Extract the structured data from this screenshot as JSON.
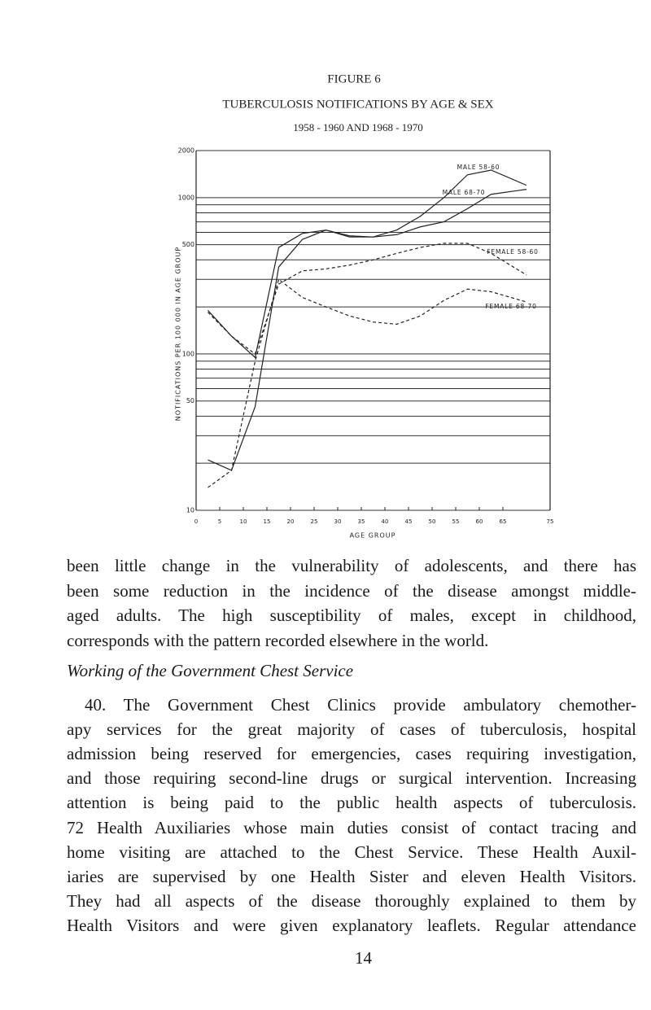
{
  "document": {
    "figure_label": "FIGURE 6",
    "paragraph_1": [
      "been little change in the vulnerability of adolescents, and there has",
      "been some reduction in the incidence of the disease amongst middle-",
      "aged adults. The high susceptibility of males, except in childhood,",
      "corresponds with the pattern recorded elsewhere in the world."
    ],
    "heading": "Working of the Government Chest Service",
    "paragraph_2": [
      "40. The Government Chest Clinics provide ambulatory chemother-",
      "apy services for the great majority of cases of tuberculosis, hospital",
      "admission being reserved for emergencies, cases requiring investigation,",
      "and those requiring second-line drugs or surgical intervention. Increasing",
      "attention is being paid to the public health aspects of tuberculosis.",
      "72 Health Auxiliaries whose main duties consist of contact tracing and",
      "home visiting are attached to the Chest Service. These Health Auxil-",
      "iaries are supervised by one Health Sister and eleven Health Visitors.",
      "They had all aspects of the disease thoroughly explained to them by",
      "Health Visitors and were given explanatory leaflets. Regular attendance"
    ],
    "page_number": "14"
  },
  "chart_data": {
    "type": "line",
    "title": "TUBERCULOSIS NOTIFICATIONS BY AGE & SEX",
    "subtitle": "1958 - 1960 AND 1968 - 1970",
    "x_label": "AGE GROUP",
    "y_label": "NOTIFICATIONS PER 100 000 IN AGE GROUP",
    "x": [
      2.5,
      7.5,
      12.5,
      17.5,
      22.5,
      27.5,
      32.5,
      37.5,
      42.5,
      47.5,
      52.5,
      57.5,
      62.5,
      70
    ],
    "series": [
      {
        "name": "MALE 58-60",
        "color": "#222222",
        "dashed": false,
        "values": [
          190,
          130,
          95,
          480,
          590,
          620,
          570,
          560,
          620,
          760,
          1000,
          1400,
          1500,
          1200
        ]
      },
      {
        "name": "MALE 68-70",
        "color": "#222222",
        "dashed": false,
        "values": [
          21,
          18,
          46,
          360,
          540,
          620,
          560,
          560,
          580,
          650,
          700,
          850,
          1050,
          1130
        ]
      },
      {
        "name": "FEMALE 58-60",
        "color": "#222222",
        "dashed": true,
        "values": [
          185,
          130,
          100,
          280,
          340,
          350,
          370,
          400,
          440,
          480,
          510,
          510,
          440,
          320
        ]
      },
      {
        "name": "FEMALE 68-70",
        "color": "#222222",
        "dashed": true,
        "values": [
          14,
          18,
          90,
          300,
          230,
          200,
          175,
          160,
          155,
          175,
          220,
          260,
          250,
          215
        ]
      }
    ],
    "xlim": [
      0,
      75
    ],
    "xticks": [
      0,
      5,
      10,
      15,
      20,
      25,
      30,
      35,
      40,
      45,
      50,
      55,
      60,
      65,
      75
    ],
    "ylim": [
      10,
      2000
    ],
    "yticks": [
      10,
      50,
      100,
      500,
      1000,
      2000
    ],
    "minor_yticks": [
      20,
      30,
      40,
      60,
      70,
      80,
      90,
      200,
      300,
      400,
      600,
      700,
      800,
      900
    ],
    "log_y": true,
    "grid": true
  }
}
